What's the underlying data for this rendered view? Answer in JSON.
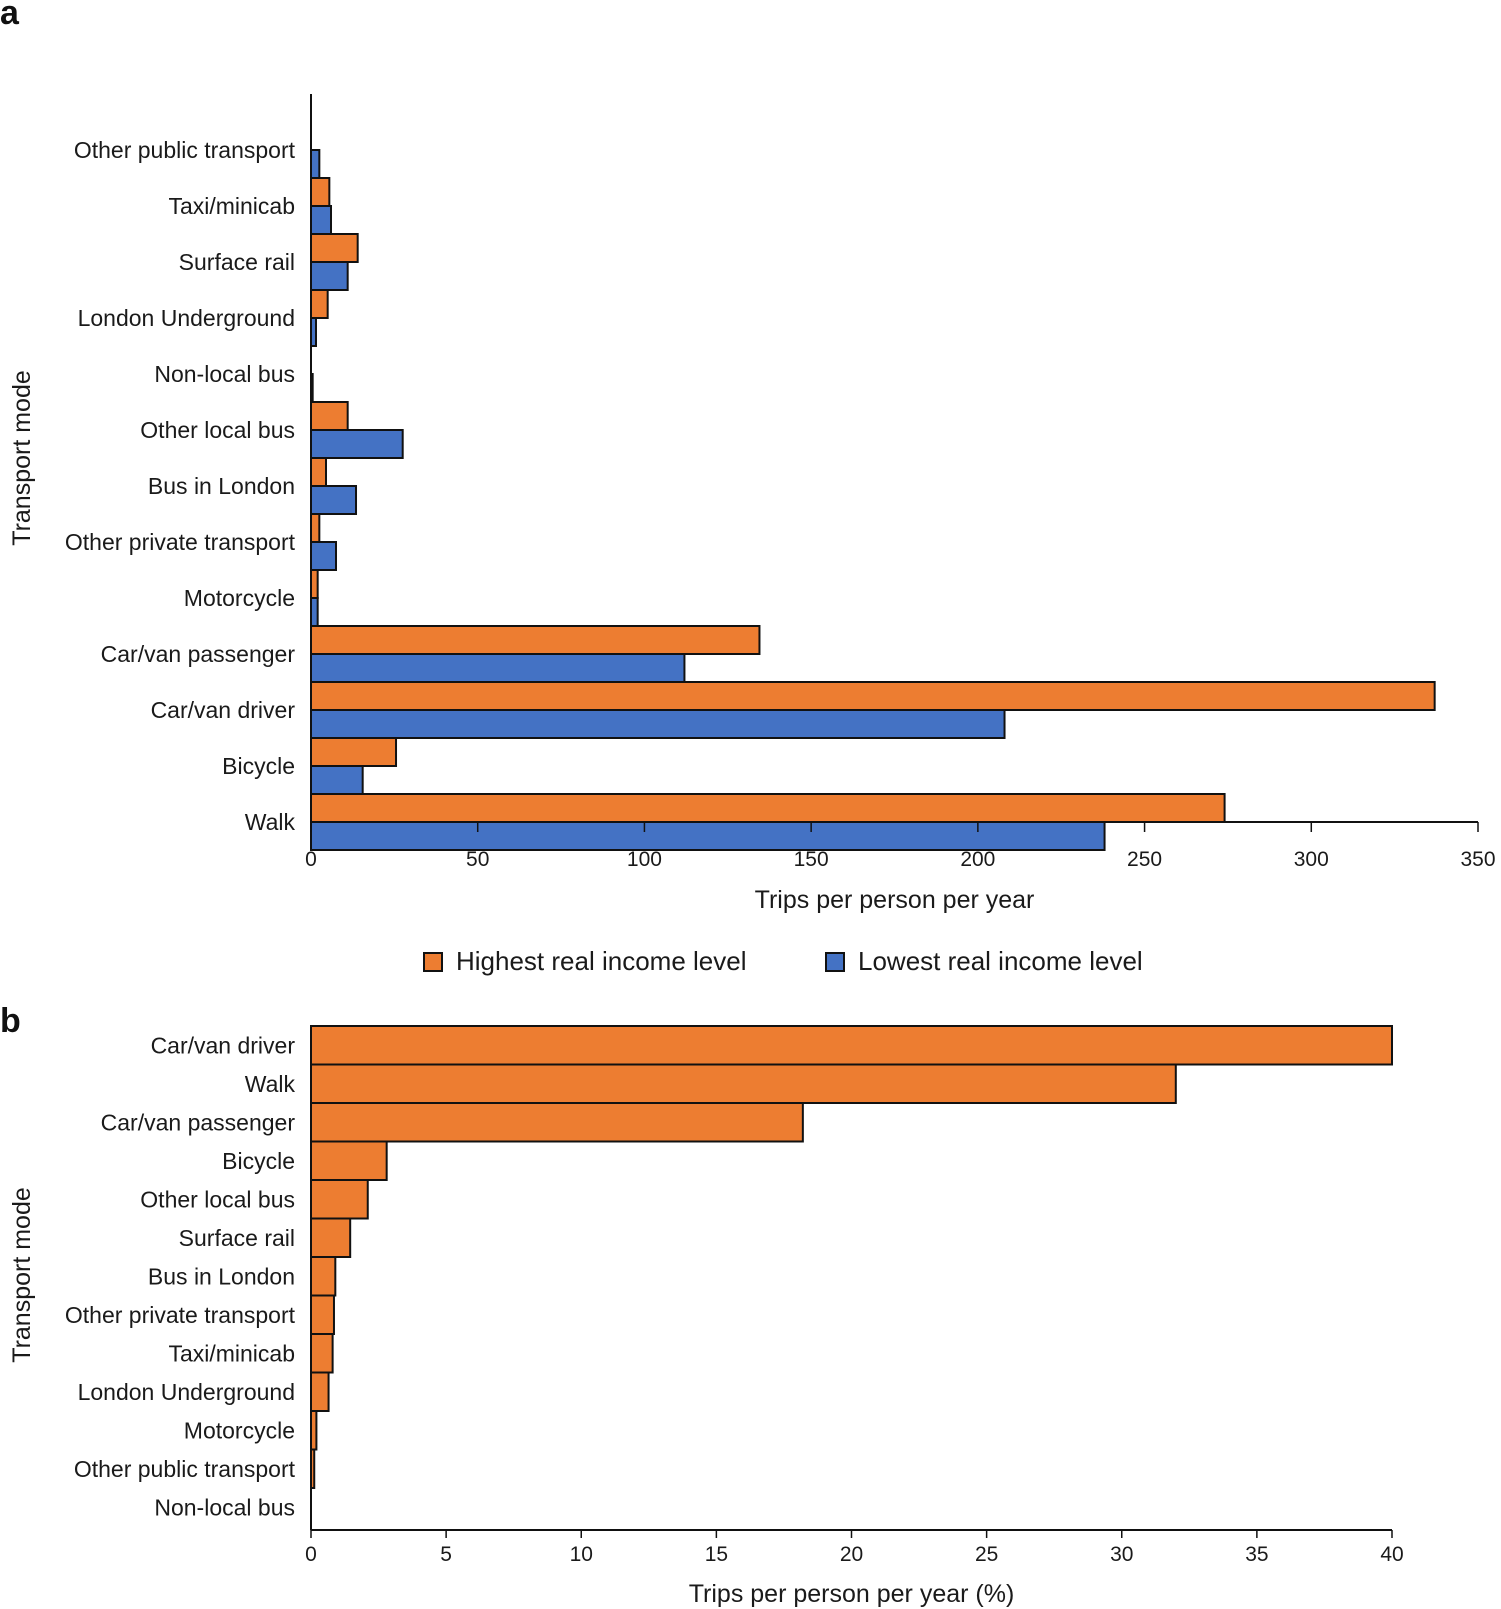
{
  "colors": {
    "highest": "#ED7D31",
    "lowest": "#4472C4"
  },
  "legend": {
    "highest_label": "Highest real income level",
    "lowest_label": "Lowest real income level"
  },
  "chart_data": [
    {
      "panel": "a",
      "type": "bar",
      "orientation": "horizontal",
      "title": "",
      "categories": [
        "Other public transport",
        "Taxi/minicab",
        "Surface rail",
        "London Underground",
        "Non-local bus",
        "Other local bus",
        "Bus in London",
        "Other private transport",
        "Motorcycle",
        "Car/van passenger",
        "Car/van driver",
        "Bicycle",
        "Walk"
      ],
      "series": [
        {
          "name": "Highest real income level",
          "color_key": "highest",
          "values": [
            0,
            5.5,
            14,
            5,
            0,
            11,
            4.5,
            2.5,
            2,
            134.5,
            337,
            25.5,
            274
          ]
        },
        {
          "name": "Lowest real income level",
          "color_key": "lowest",
          "values": [
            2.5,
            6,
            11,
            1.5,
            0.5,
            27.5,
            13.5,
            7.5,
            2,
            112,
            208,
            15.5,
            238
          ]
        }
      ],
      "xlabel": "Trips per person per year",
      "ylabel": "Transport mode",
      "xlim": [
        0,
        350
      ],
      "xticks": [
        "0",
        "50",
        "100",
        "150",
        "200",
        "250",
        "300",
        "350"
      ],
      "grid": false
    },
    {
      "panel": "b",
      "type": "bar",
      "orientation": "horizontal",
      "title": "",
      "categories": [
        "Car/van driver",
        "Walk",
        "Car/van passenger",
        "Bicycle",
        "Other local bus",
        "Surface rail",
        "Bus in London",
        "Other private transport",
        "Taxi/minicab",
        "London Underground",
        "Motorcycle",
        "Other public transport",
        "Non-local bus"
      ],
      "series": [
        {
          "name": "Highest real income level",
          "color_key": "highest",
          "values": [
            40,
            32,
            18.2,
            2.8,
            2.1,
            1.45,
            0.9,
            0.85,
            0.8,
            0.65,
            0.2,
            0.12,
            0
          ]
        }
      ],
      "xlabel": "Trips per person per year (%)",
      "ylabel": "Transport mode",
      "xlim": [
        0,
        40
      ],
      "xticks": [
        "0",
        "5",
        "10",
        "15",
        "20",
        "25",
        "30",
        "35",
        "40"
      ],
      "grid": false
    }
  ]
}
